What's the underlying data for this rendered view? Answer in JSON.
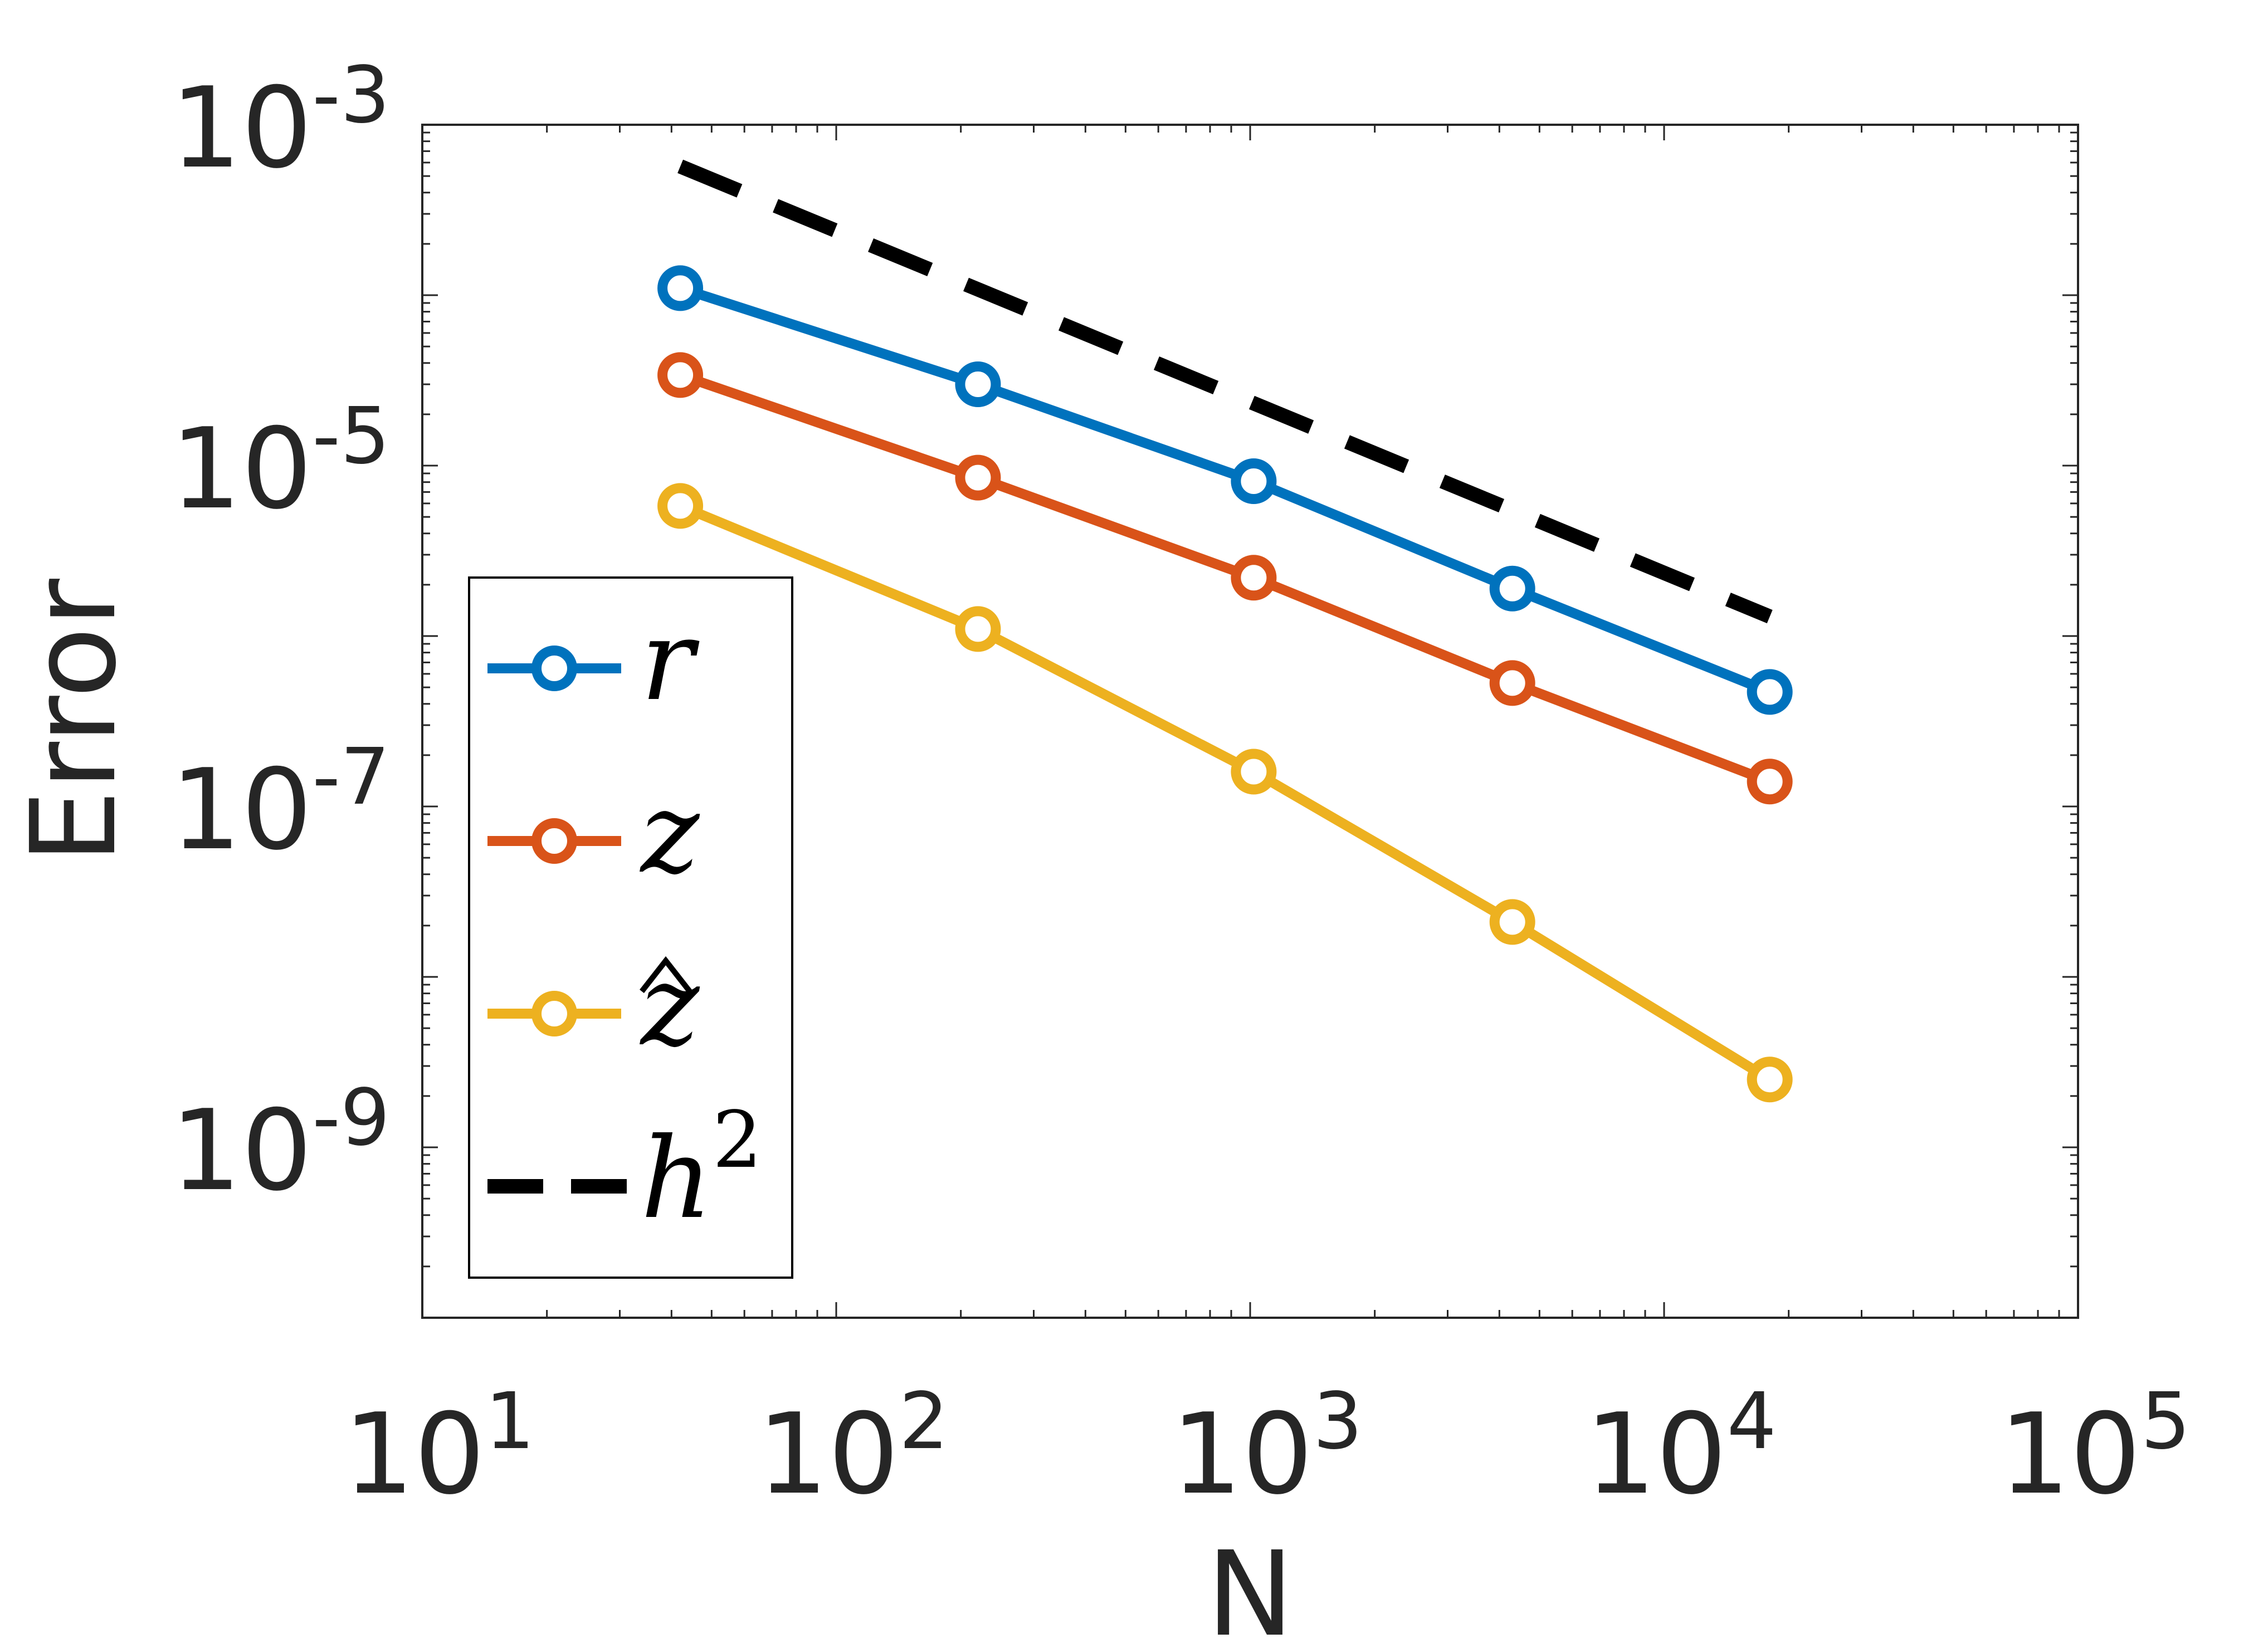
{
  "chart_data": {
    "type": "line",
    "xscale": "log",
    "yscale": "log",
    "xlabel": "N",
    "ylabel": "Error",
    "xlim": [
      10,
      100000
    ],
    "ylim": [
      1e-10,
      0.001
    ],
    "x_ticks": [
      {
        "value": 10,
        "base": "10",
        "exp": "1"
      },
      {
        "value": 100,
        "base": "10",
        "exp": "2"
      },
      {
        "value": 1000,
        "base": "10",
        "exp": "3"
      },
      {
        "value": 10000,
        "base": "10",
        "exp": "4"
      },
      {
        "value": 100000,
        "base": "10",
        "exp": "5"
      }
    ],
    "y_ticks": [
      {
        "value": 0.001,
        "base": "10",
        "exp": "-3"
      },
      {
        "value": 1e-05,
        "base": "10",
        "exp": "-5"
      },
      {
        "value": 1e-07,
        "base": "10",
        "exp": "-7"
      },
      {
        "value": 1e-09,
        "base": "10",
        "exp": "-9"
      }
    ],
    "x": [
      42,
      220,
      1020,
      4300,
      18000
    ],
    "series": [
      {
        "name": "r",
        "sup": "",
        "hat": false,
        "color": "#0072BD",
        "style": "line-marker",
        "values": [
          0.00011,
          3e-05,
          8.1e-06,
          1.9e-06,
          4.7e-07
        ]
      },
      {
        "name": "z",
        "sup": "",
        "hat": false,
        "color": "#D95319",
        "style": "line-marker",
        "values": [
          3.4e-05,
          8.5e-06,
          2.2e-06,
          5.3e-07,
          1.4e-07
        ]
      },
      {
        "name": "z",
        "sup": "",
        "hat": true,
        "color": "#EDB120",
        "style": "line-marker",
        "values": [
          5.8e-06,
          1.1e-06,
          1.6e-07,
          2.1e-08,
          2.5e-09
        ]
      },
      {
        "name": "h",
        "sup": "2",
        "hat": false,
        "color": "#000000",
        "style": "dashed",
        "x": [
          42,
          18000
        ],
        "values": [
          0.00057,
          1.3e-06
        ]
      }
    ],
    "legend": "bottom-left inside"
  }
}
